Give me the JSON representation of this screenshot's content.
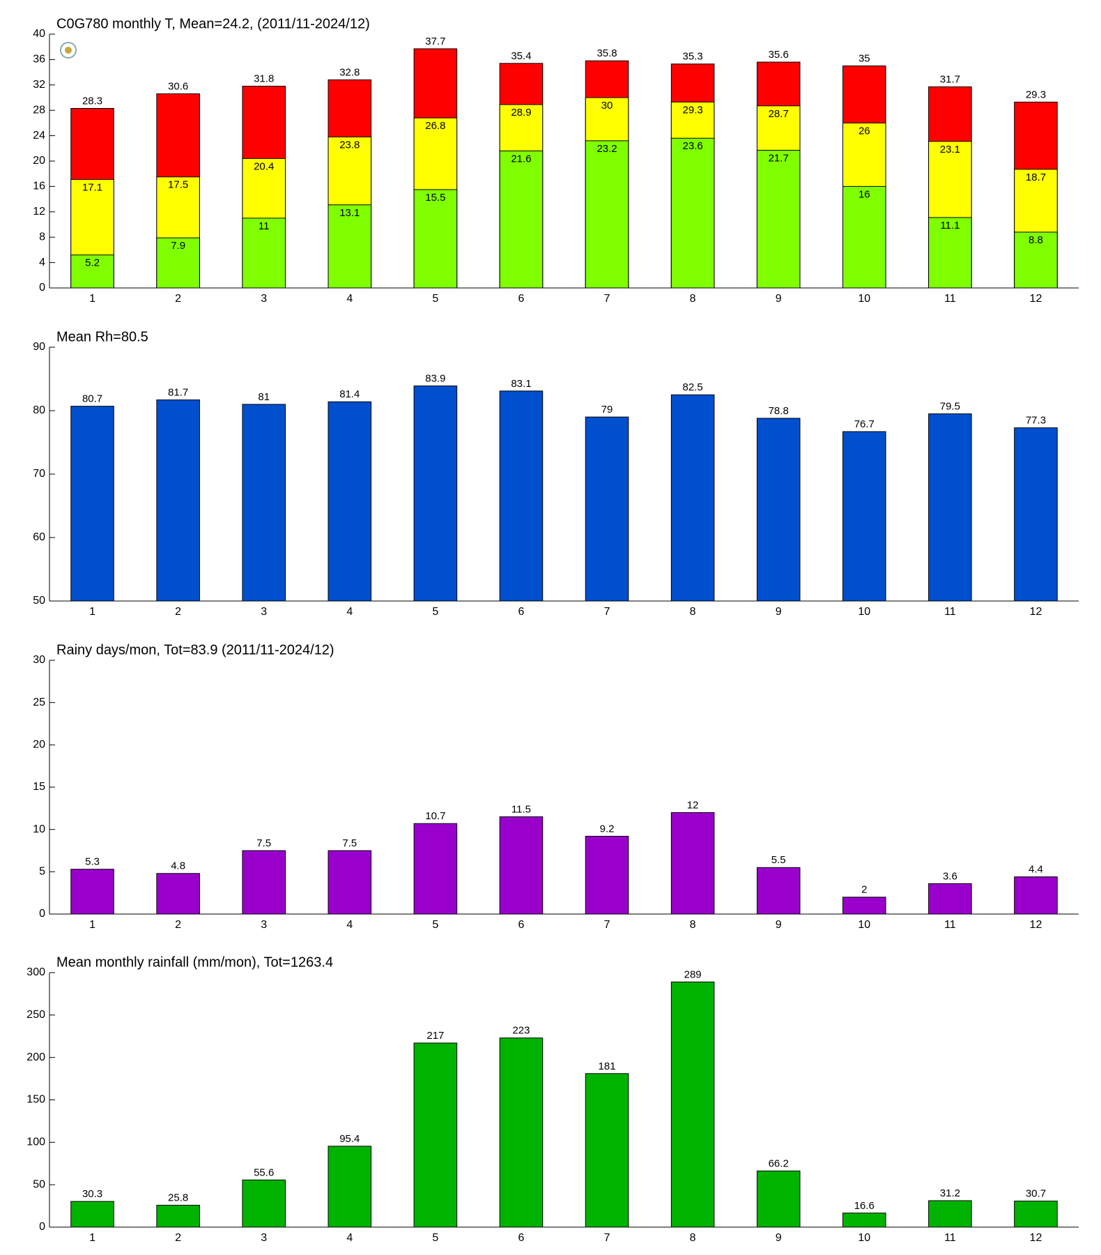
{
  "chart_data": [
    {
      "type": "bar",
      "title": "C0G780 monthly T, Mean=24.2, (2011/11-2024/12)",
      "categories": [
        "1",
        "2",
        "3",
        "4",
        "5",
        "6",
        "7",
        "8",
        "9",
        "10",
        "11",
        "12"
      ],
      "series": [
        {
          "color": "#ff0000",
          "values": [
            28.3,
            30.6,
            31.8,
            32.8,
            37.7,
            35.4,
            35.8,
            35.3,
            35.6,
            35,
            31.7,
            29.3
          ]
        },
        {
          "color": "#ffff00",
          "values": [
            17.1,
            17.5,
            20.4,
            23.8,
            26.8,
            28.9,
            30,
            29.3,
            28.7,
            26,
            23.1,
            18.7
          ]
        },
        {
          "color": "#80ff00",
          "values": [
            5.2,
            7.9,
            11,
            13.1,
            15.5,
            21.6,
            23.2,
            23.6,
            21.7,
            16,
            11.1,
            8.8
          ]
        }
      ],
      "ylim": [
        0,
        40
      ],
      "yticks": [
        0,
        4,
        8,
        12,
        16,
        20,
        24,
        28,
        32,
        36,
        40
      ]
    },
    {
      "type": "bar",
      "title": "Mean Rh=80.5",
      "categories": [
        "1",
        "2",
        "3",
        "4",
        "5",
        "6",
        "7",
        "8",
        "9",
        "10",
        "11",
        "12"
      ],
      "series": [
        {
          "color": "#004fcf",
          "values": [
            80.7,
            81.7,
            81,
            81.4,
            83.9,
            83.1,
            79,
            82.5,
            78.8,
            76.7,
            79.5,
            77.3
          ]
        }
      ],
      "ylim": [
        50,
        90
      ],
      "yticks": [
        50,
        60,
        70,
        80,
        90
      ]
    },
    {
      "type": "bar",
      "title": "Rainy days/mon, Tot=83.9 (2011/11-2024/12)",
      "categories": [
        "1",
        "2",
        "3",
        "4",
        "5",
        "6",
        "7",
        "8",
        "9",
        "10",
        "11",
        "12"
      ],
      "series": [
        {
          "color": "#9900cc",
          "values": [
            5.3,
            4.8,
            7.5,
            7.5,
            10.7,
            11.5,
            9.2,
            12,
            5.5,
            2,
            3.6,
            4.4
          ]
        }
      ],
      "ylim": [
        0,
        30
      ],
      "yticks": [
        0,
        5,
        10,
        15,
        20,
        25,
        30
      ]
    },
    {
      "type": "bar",
      "title": "Mean monthly rainfall (mm/mon), Tot=1263.4",
      "categories": [
        "1",
        "2",
        "3",
        "4",
        "5",
        "6",
        "7",
        "8",
        "9",
        "10",
        "11",
        "12"
      ],
      "series": [
        {
          "color": "#00b300",
          "values": [
            30.3,
            25.8,
            55.6,
            95.4,
            217,
            223,
            181,
            289,
            66.2,
            16.6,
            31.2,
            30.7
          ]
        }
      ],
      "ylim": [
        0,
        300
      ],
      "yticks": [
        0,
        50,
        100,
        150,
        200,
        250,
        300
      ]
    }
  ]
}
